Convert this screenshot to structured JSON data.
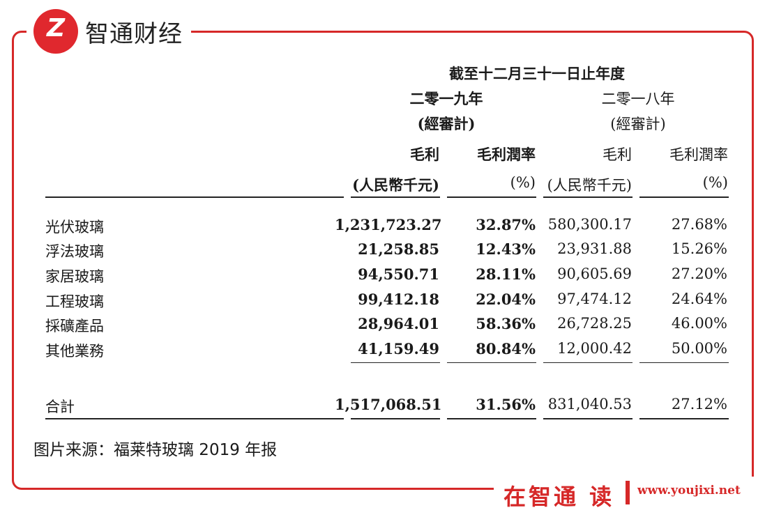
{
  "brand": {
    "logo_glyph": "Z",
    "name": "智通财经"
  },
  "table": {
    "period_header": "截至十二月三十一日止年度",
    "years": [
      {
        "year": "二零一九年",
        "note": "(經審計)"
      },
      {
        "year": "二零一八年",
        "note": "(經審計)"
      }
    ],
    "col_headers": [
      {
        "title": "毛利",
        "unit": "(人民幣千元)"
      },
      {
        "title": "毛利潤率",
        "unit": "(%)"
      },
      {
        "title": "毛利",
        "unit": "(人民幣千元)"
      },
      {
        "title": "毛利潤率",
        "unit": "(%)"
      }
    ],
    "rows": [
      {
        "label": "光伏玻璃",
        "v": [
          "1,231,723.27",
          "32.87%",
          "580,300.17",
          "27.68%"
        ]
      },
      {
        "label": "浮法玻璃",
        "v": [
          "21,258.85",
          "12.43%",
          "23,931.88",
          "15.26%"
        ]
      },
      {
        "label": "家居玻璃",
        "v": [
          "94,550.71",
          "28.11%",
          "90,605.69",
          "27.20%"
        ]
      },
      {
        "label": "工程玻璃",
        "v": [
          "99,412.18",
          "22.04%",
          "97,474.12",
          "24.64%"
        ]
      },
      {
        "label": "採礦產品",
        "v": [
          "28,964.01",
          "58.36%",
          "26,728.25",
          "46.00%"
        ]
      },
      {
        "label": "其他業務",
        "v": [
          "41,159.49",
          "80.84%",
          "12,000.42",
          "50.00%"
        ]
      }
    ],
    "total": {
      "label": "合計",
      "v": [
        "1,517,068.51",
        "31.56%",
        "831,040.53",
        "27.12%"
      ]
    }
  },
  "source": "图片来源：福莱特玻璃 2019 年报",
  "footer": {
    "brand": "在智通 读",
    "site": "www.youjixi.net"
  },
  "colors": {
    "accent": "#d62828"
  }
}
